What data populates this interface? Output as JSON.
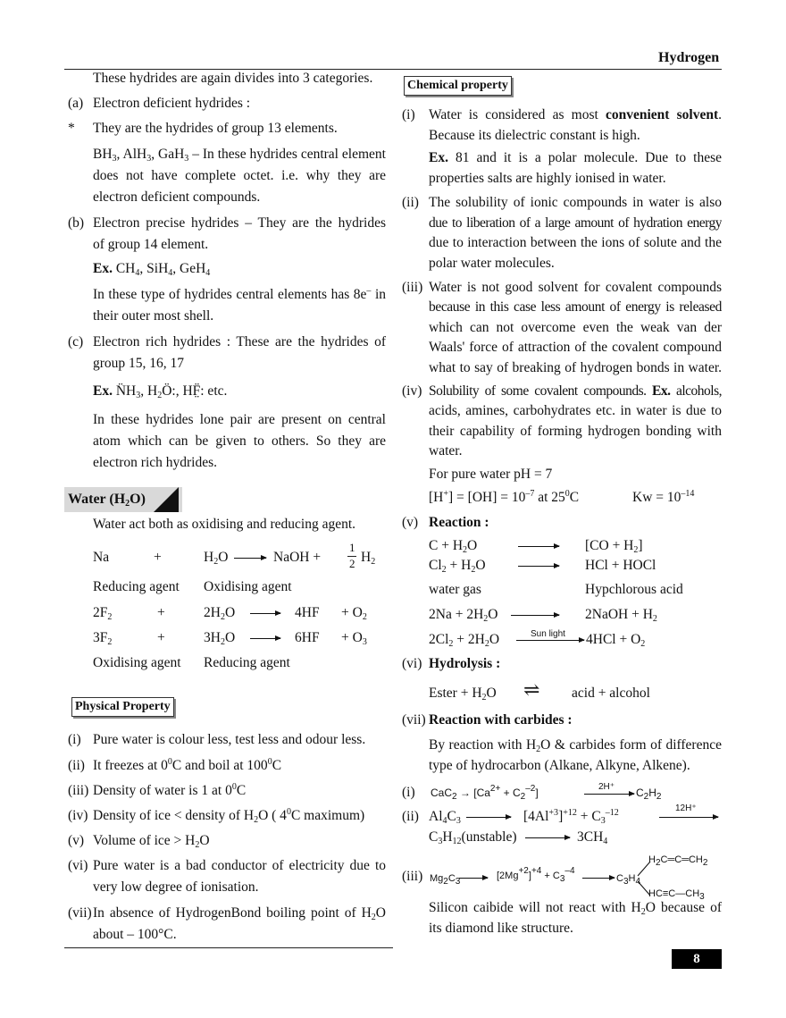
{
  "header": {
    "chapter": "Hydrogen",
    "page_number": "8"
  },
  "left": {
    "intro": "These hydrides are again divides into 3 categories.",
    "a_num": "(a)",
    "a_title": "Electron deficient hydrides :",
    "star": "*",
    "a1": "They are the hydrides of group 13 elements.",
    "a2": "BH_{3}, AlH_{3}, GaH_{3} – In these hydrides central element",
    "a3": "does not have complete octet. i.e. why they are called",
    "a4": "electron deficient compounds.",
    "b_num": "(b)",
    "b1": "Electron precise hydrides – They are the hydrides",
    "b2": "of group 14 element.",
    "b3": "**Ex.** CH_{4}, SiH_{4}, GeH_{4}",
    "b4": "In these type of hydrides central elements has 8e^{–} in",
    "b5": "their outer most shell.",
    "c_num": "(c)",
    "c1": "Electron rich hydrides : These are the hydrides of",
    "c2": "group 15, 16, 17",
    "c3": "**Ex.** N̈H_{3},  H_{2}Ö:,  HF̤̈: etc.",
    "c4": "In these hydrides lone pair are present on central",
    "c5": "atom which can be given to others. So they are called",
    "c6": "electron rich hydrides.",
    "water": {
      "title": "Water (H_{2}O)",
      "intro": "Water act both as oxidising and reducing agent.",
      "eq1": {
        "r1": "Na",
        "plus": "+",
        "r2": "H_{2}O",
        "p1": "NaOH  +",
        "half_num": "1",
        "half_den": "2",
        "p2": "H_{2}"
      },
      "lab1": {
        "a": "Reducing agent",
        "b": "Oxidising agent"
      },
      "eq2": {
        "r1": "2F_{2}",
        "plus": "+",
        "r2": "2H_{2}O",
        "p1": "4HF",
        "p2": "+  O_{2}"
      },
      "eq3": {
        "r1": "3F_{2}",
        "plus": "+",
        "r2": "3H_{2}O",
        "p1": "6HF",
        "p2": "+  O_{3}"
      },
      "lab2": {
        "a": "Oxidising agent",
        "b": "Reducing agent"
      }
    },
    "physical": {
      "title": "Physical Property",
      "items": [
        {
          "num": "(i)",
          "text": "Pure water is colour less, test less and odour less."
        },
        {
          "num": "(ii)",
          "text": " It freezes at 0^{0}C and boil at 100^{0}C"
        },
        {
          "num": "(iii)",
          "text": "Density of water is 1 at 0^{0}C"
        },
        {
          "num": "(iv)",
          "text": "Density of ice  <  density of H_{2}O ( 4^{0}C maximum)"
        },
        {
          "num": "(v)",
          "text": "Volume of ice  >  H_{2}O"
        },
        {
          "num": "(vi)",
          "text": "Pure water is a bad conductor of electricity due to",
          "cont": "very low degree of ionisation."
        },
        {
          "num": "(vii)",
          "text": "In absence of HydrogenBond boiling point of H_{2}O",
          "cont": "about – 100°C."
        }
      ]
    }
  },
  "right": {
    "chem_title": "Chemical property",
    "i_num": "(i)",
    "i1": "Water is considered as most **convenient solvent**.",
    "i2": "Because its dielectric constant is high.",
    "i3": "**Ex.** 81 and it is a polar molecule. Due to these",
    "i4": "properties salts are highly ionised in water.",
    "ii_num": "(ii)",
    "ii1": "The solubility of ionic compounds in water is also",
    "ii2": "due to liberation of a large amount of hydration energy",
    "ii3": "due to interaction between the ions of solute and the",
    "ii4": "polar water molecules.",
    "iii_num": "(iii)",
    "iii1": "Water is not good solvent for covalent compounds",
    "iii2": "because in this case less amount of energy is released",
    "iii3": "which can not overcome even the weak van der",
    "iii4": "Waals' force of attraction of the covalent compound",
    "iii5": "what to say of breaking of hydrogen bonds in water.",
    "iv_num": "(iv)",
    "iv1": "Solubility of some covalent compounds. **Ex.** alcohols,",
    "iv2": "acids, amines, carbohydrates etc. in water is due to",
    "iv3": "their capability of forming hydrogen bonding with",
    "iv4": "water.",
    "iv5": "For pure water  pH = 7",
    "iv6": "[H^{+}] = [OH] = 10^{–7}  at 25^{0}C",
    "iv7": "Kw = 10^{–14}",
    "v_num": "(v)",
    "v_title": "**Reaction :**",
    "v_eq1": {
      "l": "C    +  H_{2}O",
      "r": "[CO + H_{2}]"
    },
    "v_eq2": {
      "l": "Cl_{2}  +  H_{2}O",
      "r": "HCl  +  HOCl"
    },
    "v_lab": {
      "l": "water gas",
      "r": "Hypchlorous acid"
    },
    "v_eq3": {
      "l": "2Na +  2H_{2}O",
      "r": "2NaOH   +   H_{2}"
    },
    "v_eq4": {
      "l": "2Cl_{2} +  2H_{2}O",
      "cond": "Sun light",
      "r": "4HCl   +   O_{2}"
    },
    "vi_num": "(vi)",
    "vi_title": "**Hydrolysis :**",
    "vi_eq": {
      "l": "Ester  +  H_{2}O",
      "r": "acid  +  alcohol"
    },
    "vii_num": "(vii)",
    "vii_title": "**Reaction with carbides :**",
    "vii1": "By reaction with H_{2}O & carbides form of difference",
    "vii2": "type of hydrocarbon (Alkane, Alkyne, Alkene).",
    "c1": {
      "num": "(i)",
      "l": "CaC_{2}   →  [Ca^{2+}  +  C_{2}^{–2}]",
      "cond": "2H⁺",
      "r": "C_{2}H_{2}"
    },
    "c2": {
      "num": "(ii)",
      "l": "Al_{4}C_{3}",
      "m": "[4Al^{+3}]^{+12}     +     C_{3}^{–12}",
      "cond": "12H⁺",
      "l2": "C_{3}H_{12}(unstable)",
      "r2": "3CH_{4}"
    },
    "c3": {
      "num": "(iii)",
      "l": "Mg_{2}C_{3}",
      "m": "[2Mg^{+2}]^{+4}   +    C_{3}^{–4}",
      "r": "C_{3}H_{4}",
      "top": "H_{2}C═C═CH_{2}",
      "bot": "HC≡C—CH_{3}"
    },
    "si1": "Silicon caibide will not react with H_{2}O because of",
    "si2": "its diamond like structure."
  }
}
